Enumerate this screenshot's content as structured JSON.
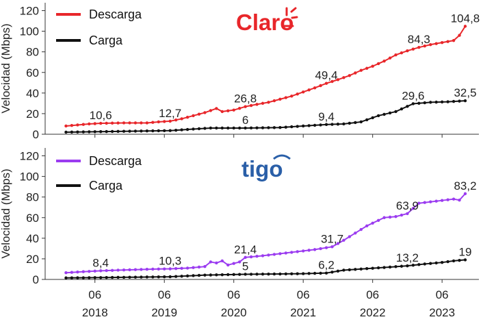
{
  "shared": {
    "ylabel": "Velocidad (Mbps)",
    "y_ticks": [
      "0",
      "20",
      "40",
      "60",
      "80",
      "100",
      "120"
    ],
    "x_ticks": [
      {
        "month": "06",
        "year": "2018"
      },
      {
        "month": "06",
        "year": "2019"
      },
      {
        "month": "06",
        "year": "2020"
      },
      {
        "month": "06",
        "year": "2021"
      },
      {
        "month": "06",
        "year": "2022"
      },
      {
        "month": "06",
        "year": "2023"
      }
    ]
  },
  "chart_data": [
    {
      "type": "line",
      "panel": "top",
      "brand": "Claro",
      "brand_color": "#e8262a",
      "ylabel": "Velocidad (Mbps)",
      "ylim": [
        0,
        125
      ],
      "xlim": [
        "2017-12",
        "2023-10"
      ],
      "legend_position": "top-left",
      "series": [
        {
          "name": "Descarga",
          "color": "#e8262a",
          "points": [
            [
              "2018-01",
              8
            ],
            [
              "2018-03",
              9
            ],
            [
              "2018-05",
              10
            ],
            [
              "2018-07",
              10.6
            ],
            [
              "2018-09",
              10.8
            ],
            [
              "2018-11",
              11
            ],
            [
              "2019-01",
              11
            ],
            [
              "2019-03",
              11
            ],
            [
              "2019-05",
              12
            ],
            [
              "2019-07",
              12.7
            ],
            [
              "2019-09",
              15
            ],
            [
              "2019-11",
              18
            ],
            [
              "2020-01",
              21
            ],
            [
              "2020-03",
              25
            ],
            [
              "2020-04",
              22
            ],
            [
              "2020-06",
              23.5
            ],
            [
              "2020-08",
              26.8
            ],
            [
              "2020-10",
              29
            ],
            [
              "2020-12",
              31
            ],
            [
              "2021-02",
              34
            ],
            [
              "2021-04",
              37
            ],
            [
              "2021-06",
              41
            ],
            [
              "2021-08",
              45
            ],
            [
              "2021-10",
              49.4
            ],
            [
              "2021-12",
              53
            ],
            [
              "2022-02",
              57
            ],
            [
              "2022-04",
              62
            ],
            [
              "2022-06",
              66
            ],
            [
              "2022-08",
              71
            ],
            [
              "2022-10",
              77
            ],
            [
              "2022-12",
              81
            ],
            [
              "2023-02",
              84.3
            ],
            [
              "2023-04",
              87
            ],
            [
              "2023-06",
              89
            ],
            [
              "2023-08",
              91
            ],
            [
              "2023-09",
              96
            ],
            [
              "2023-10",
              104.8
            ]
          ],
          "labels": [
            [
              "2018-07",
              "10,6"
            ],
            [
              "2019-07",
              "12,7"
            ],
            [
              "2020-08",
              "26,8"
            ],
            [
              "2021-10",
              "49,4"
            ],
            [
              "2023-02",
              "84,3"
            ],
            [
              "2023-10",
              "104,8"
            ]
          ]
        },
        {
          "name": "Carga",
          "color": "#111111",
          "points": [
            [
              "2018-01",
              2
            ],
            [
              "2018-07",
              2.5
            ],
            [
              "2019-01",
              3
            ],
            [
              "2019-07",
              3.5
            ],
            [
              "2019-11",
              5
            ],
            [
              "2020-02",
              6
            ],
            [
              "2020-08",
              6
            ],
            [
              "2021-02",
              6.5
            ],
            [
              "2021-06",
              8
            ],
            [
              "2021-10",
              9.4
            ],
            [
              "2022-01",
              10
            ],
            [
              "2022-04",
              12
            ],
            [
              "2022-07",
              18
            ],
            [
              "2022-10",
              22
            ],
            [
              "2023-01",
              29.6
            ],
            [
              "2023-04",
              31
            ],
            [
              "2023-07",
              31.5
            ],
            [
              "2023-10",
              32.5
            ]
          ],
          "labels": [
            [
              "2020-08",
              "6"
            ],
            [
              "2021-10",
              "9,4"
            ],
            [
              "2023-01",
              "29,6"
            ],
            [
              "2023-10",
              "32,5"
            ]
          ]
        }
      ]
    },
    {
      "type": "line",
      "panel": "bottom",
      "brand": "tigo",
      "brand_color": "#2a5fa8",
      "ylabel": "Velocidad (Mbps)",
      "ylim": [
        0,
        125
      ],
      "xlim": [
        "2017-12",
        "2023-10"
      ],
      "legend_position": "top-left",
      "series": [
        {
          "name": "Descarga",
          "color": "#9b3cf0",
          "points": [
            [
              "2018-01",
              6.5
            ],
            [
              "2018-04",
              7.5
            ],
            [
              "2018-07",
              8.4
            ],
            [
              "2018-10",
              9
            ],
            [
              "2019-01",
              9.5
            ],
            [
              "2019-04",
              10
            ],
            [
              "2019-07",
              10.3
            ],
            [
              "2019-10",
              11
            ],
            [
              "2020-01",
              12.5
            ],
            [
              "2020-02",
              17
            ],
            [
              "2020-03",
              16
            ],
            [
              "2020-04",
              18
            ],
            [
              "2020-05",
              14
            ],
            [
              "2020-07",
              17
            ],
            [
              "2020-08",
              21.4
            ],
            [
              "2020-11",
              23
            ],
            [
              "2021-02",
              25
            ],
            [
              "2021-05",
              27
            ],
            [
              "2021-08",
              29
            ],
            [
              "2021-11",
              31.7
            ],
            [
              "2022-01",
              38
            ],
            [
              "2022-03",
              45
            ],
            [
              "2022-05",
              52
            ],
            [
              "2022-08",
              60
            ],
            [
              "2022-10",
              61
            ],
            [
              "2022-12",
              63.9
            ],
            [
              "2023-02",
              74
            ],
            [
              "2023-05",
              76
            ],
            [
              "2023-08",
              78
            ],
            [
              "2023-09",
              77
            ],
            [
              "2023-10",
              83.2
            ]
          ],
          "labels": [
            [
              "2018-07",
              "8,4"
            ],
            [
              "2019-07",
              "10,3"
            ],
            [
              "2020-08",
              "21,4"
            ],
            [
              "2021-11",
              "31,7"
            ],
            [
              "2022-12",
              "63,9"
            ],
            [
              "2023-10",
              "83,2"
            ]
          ]
        },
        {
          "name": "Carga",
          "color": "#111111",
          "points": [
            [
              "2018-01",
              1.5
            ],
            [
              "2018-07",
              1.8
            ],
            [
              "2019-01",
              2.2
            ],
            [
              "2019-07",
              2.6
            ],
            [
              "2020-01",
              4.2
            ],
            [
              "2020-08",
              5
            ],
            [
              "2021-02",
              5.3
            ],
            [
              "2021-06",
              5.6
            ],
            [
              "2021-10",
              6.2
            ],
            [
              "2022-01",
              9
            ],
            [
              "2022-05",
              10.5
            ],
            [
              "2022-09",
              12
            ],
            [
              "2022-12",
              13.2
            ],
            [
              "2023-03",
              15
            ],
            [
              "2023-06",
              16.5
            ],
            [
              "2023-08",
              18
            ],
            [
              "2023-10",
              19
            ]
          ],
          "labels": [
            [
              "2020-08",
              "5"
            ],
            [
              "2021-10",
              "6,2"
            ],
            [
              "2022-12",
              "13,2"
            ],
            [
              "2023-10",
              "19"
            ]
          ]
        }
      ]
    }
  ]
}
